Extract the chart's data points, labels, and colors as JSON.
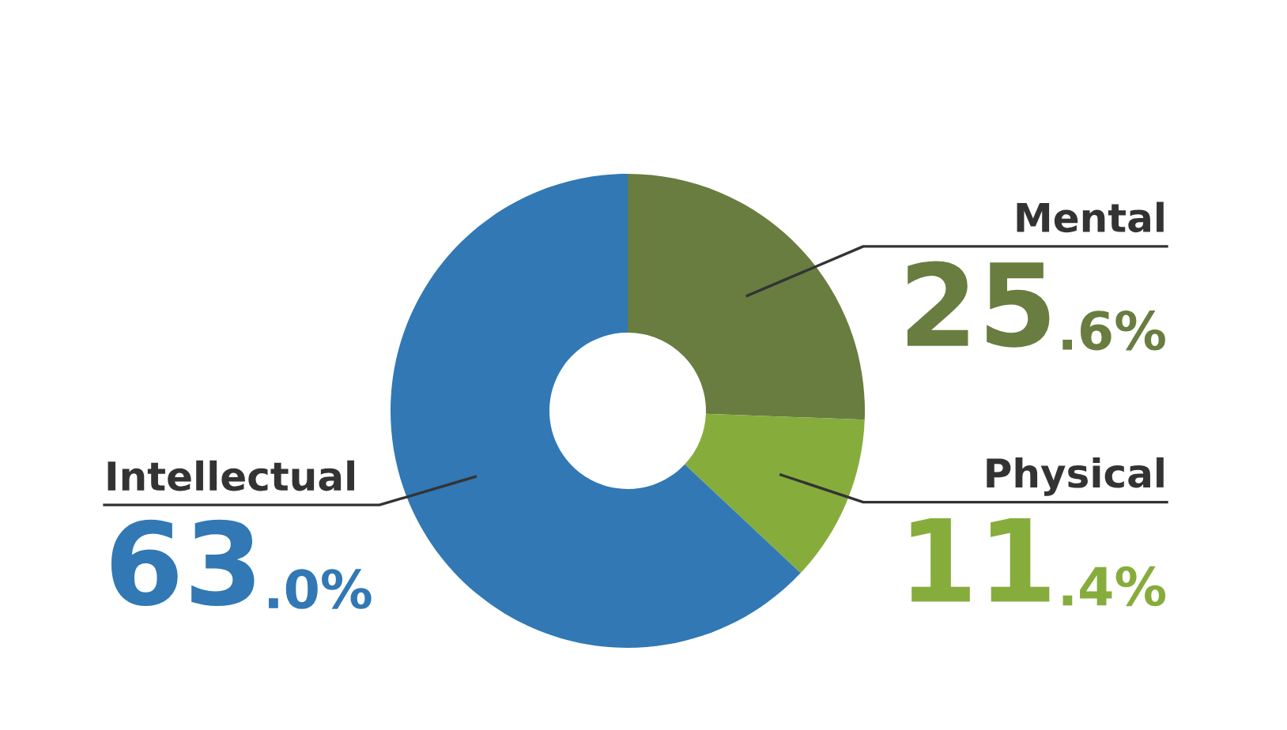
{
  "chart_data": {
    "type": "donut",
    "categories": [
      "Mental",
      "Physical",
      "Intellectual"
    ],
    "values": [
      25.6,
      11.4,
      63.0
    ],
    "colors": [
      "#687d3f",
      "#86ad3c",
      "#3178b4"
    ],
    "value_labels": [
      "25.6%",
      "11.4%",
      "63.0%"
    ]
  }
}
